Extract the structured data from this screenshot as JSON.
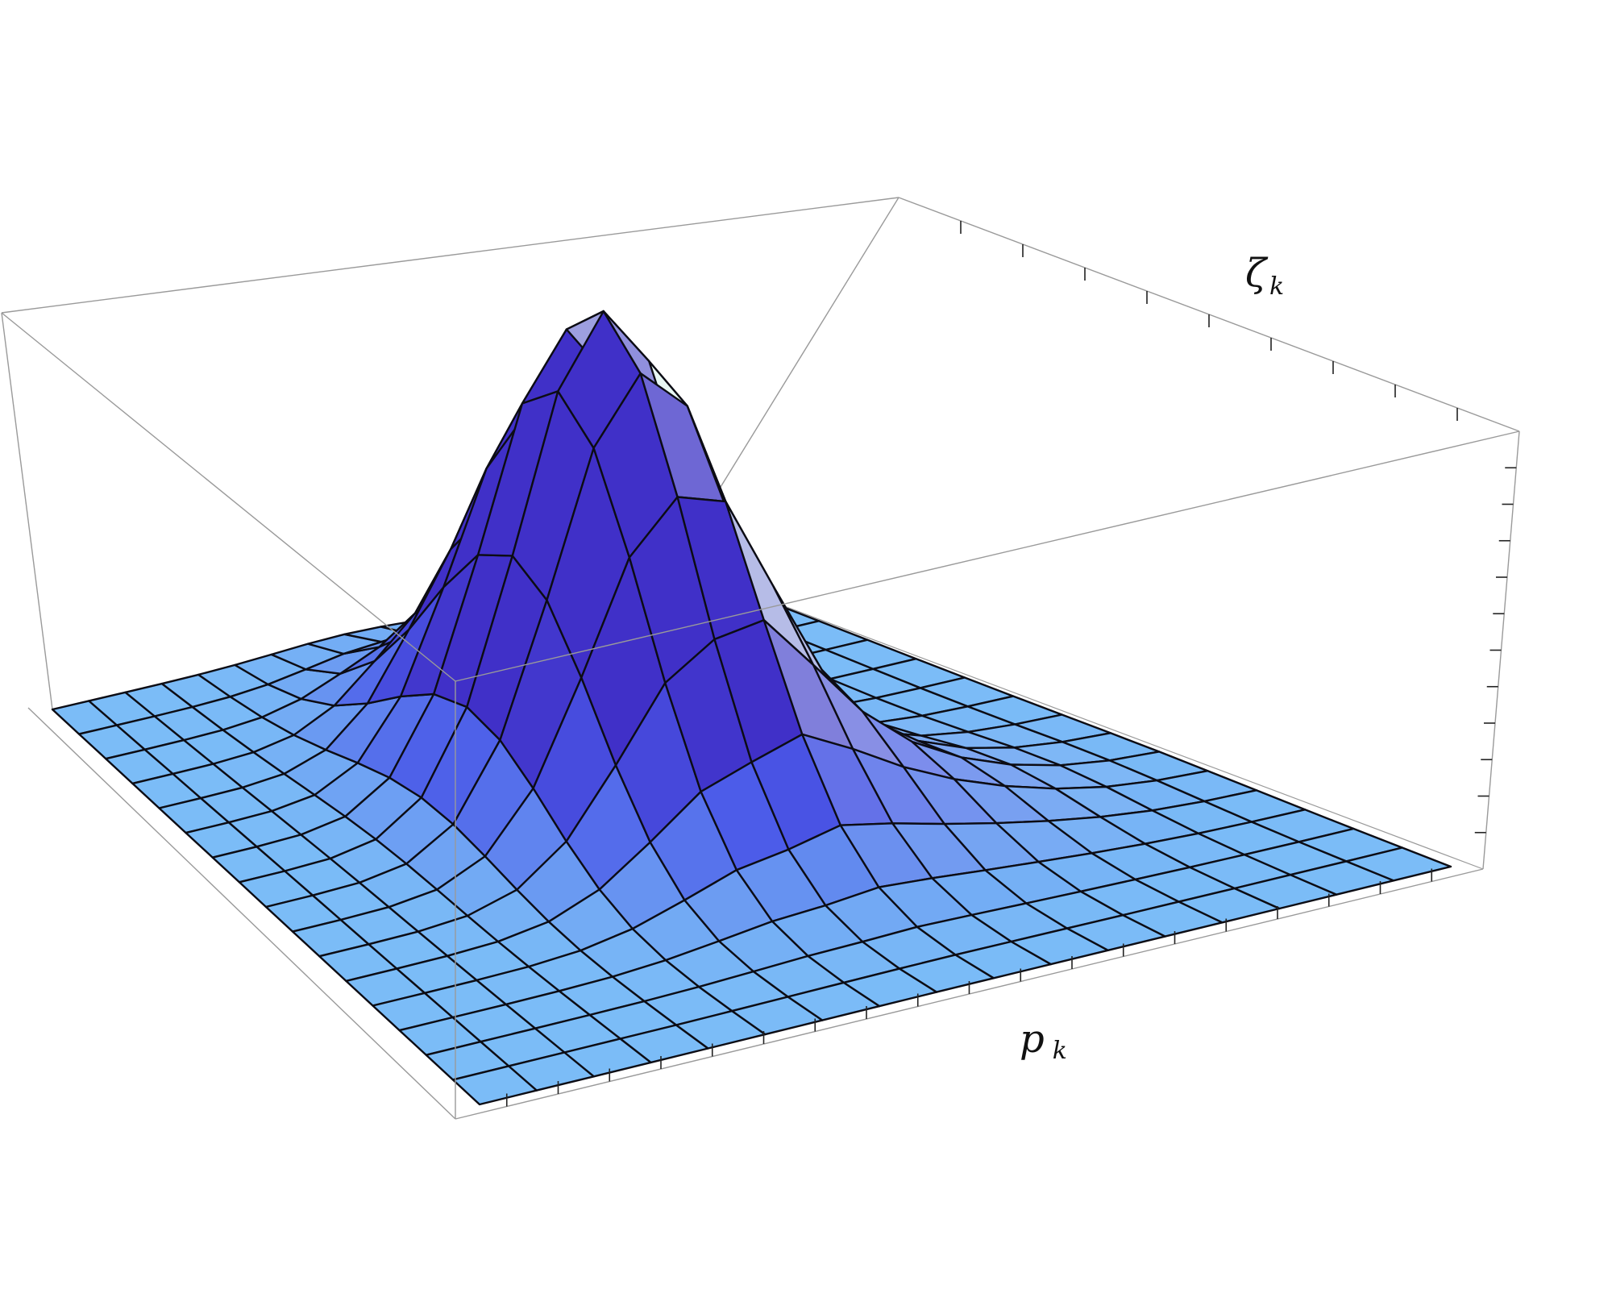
{
  "chart_data": {
    "type": "surface3d",
    "title": "",
    "xlabel": "p",
    "xlabel_sub": "k",
    "ylabel": "ζ",
    "ylabel_sub": "k",
    "zlabel": "",
    "grid_rows": 16,
    "grid_cols": 17,
    "peak": {
      "row": 7.0,
      "col": 8.0,
      "height": 1.0
    },
    "spread": {
      "row": 2.4,
      "col": 1.8
    },
    "tail": {
      "amplitude": 0.12,
      "spread_row": 1.7
    },
    "zlim": [
      0,
      1.5
    ],
    "box": true,
    "ticks_visible": true,
    "tick_labels_visible": false,
    "colors": {
      "low": "#7bbcf7",
      "mid": "#4a58e8",
      "high": "#4030c8",
      "highlight": "#e8f8f4",
      "mesh": "#0c0c14",
      "box": "#9a9a9a"
    }
  }
}
